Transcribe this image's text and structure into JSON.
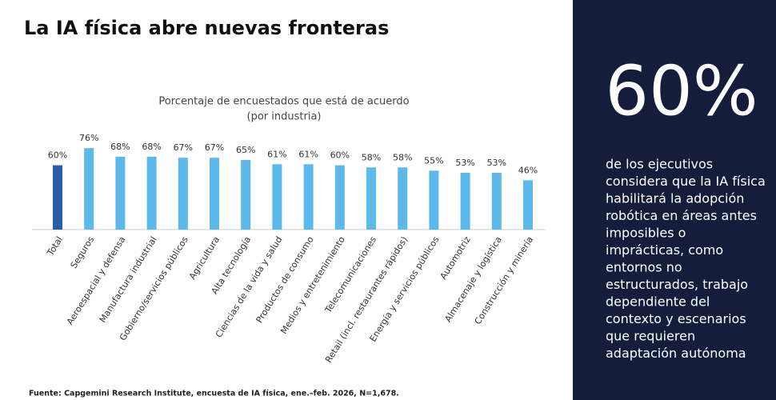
{
  "slide": {
    "title": "La IA física abre nuevas fronteras",
    "source": "Fuente: Capgemini Research Institute, encuesta de IA física, ene.–feb. 2026, N=1,678.",
    "callout_value": "60%",
    "callout_lines": [
      "de los ejecutivos",
      "considera que la IA física",
      "habilitará la adopción",
      "robótica en áreas antes",
      "imposibles o",
      "imprácticas, como",
      "entornos no",
      "estructurados, trabajo",
      "dependiente del",
      "contexto y escenarios",
      "que requieren",
      "adaptación autónoma"
    ]
  },
  "chart_data": {
    "type": "bar",
    "title": "Porcentaje de encuestados que está de acuerdo",
    "subtitle": "(por industria)",
    "categories": [
      "Total",
      "Seguros",
      "Aeroespacial y defensa",
      "Manufactura industrial",
      "Gobierno/servicios públicos",
      "Agricultura",
      "Alta tecnología",
      "Ciencias de la vida y salud",
      "Productos de consumo",
      "Medios y entretenimiento",
      "Telecomunicaciones",
      "Retail (incl. restaurantes rápidos)",
      "Energía y servicios públicos",
      "Automotriz",
      "Almacenaje y logística",
      "Construcción y minería"
    ],
    "values": [
      60,
      76,
      68,
      68,
      67,
      67,
      65,
      61,
      61,
      60,
      58,
      58,
      55,
      53,
      53,
      46
    ],
    "value_labels": [
      "60%",
      "76%",
      "68%",
      "68%",
      "67%",
      "67%",
      "65%",
      "61%",
      "61%",
      "60%",
      "58%",
      "58%",
      "55%",
      "53%",
      "53%",
      "46%"
    ],
    "colors": [
      "#2b5ca6",
      "#5cb9ea",
      "#5cb9ea",
      "#5cb9ea",
      "#5cb9ea",
      "#5cb9ea",
      "#5cb9ea",
      "#5cb9ea",
      "#5cb9ea",
      "#5cb9ea",
      "#5cb9ea",
      "#5cb9ea",
      "#5cb9ea",
      "#5cb9ea",
      "#5cb9ea",
      "#5cb9ea"
    ]
  }
}
